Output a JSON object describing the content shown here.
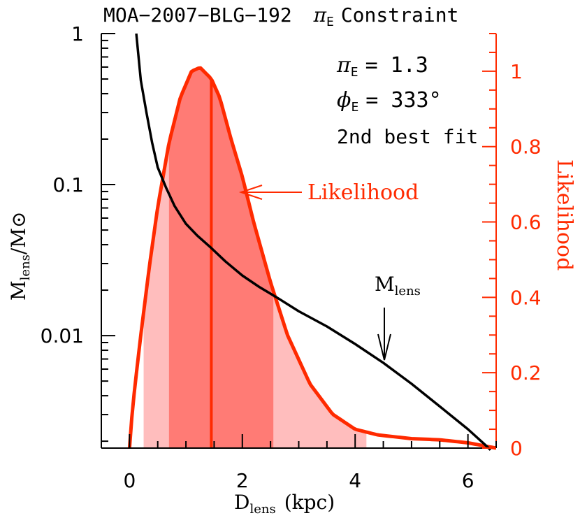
{
  "chart_data": {
    "type": "line",
    "title": {
      "main": "MOA−2007−BLG−192",
      "symbol": "π",
      "sub": "E",
      "tail": "Constraint"
    },
    "xlabel": {
      "main": "D",
      "sub": "lens",
      "tail": "(kpc)"
    },
    "ylabel_left": {
      "main": "M",
      "sub": "lens",
      "tail": "/M⊙"
    },
    "ylabel_right": "Likelihood",
    "xlim": [
      -0.5,
      6.5
    ],
    "ylim_left_log": [
      0.0018,
      1
    ],
    "ylim_right": [
      0,
      1.1
    ],
    "x_ticks": [
      0,
      2,
      4,
      6
    ],
    "x_tick_labels": [
      "0",
      "2",
      "4",
      "6"
    ],
    "y_left_ticks": [
      0.01,
      0.1,
      1
    ],
    "y_left_tick_labels": [
      "0.01",
      "0.1",
      "1"
    ],
    "y_right_ticks": [
      0,
      0.2,
      0.4,
      0.6,
      0.8,
      1
    ],
    "y_right_tick_labels": [
      "0",
      "0.2",
      "0.4",
      "0.6",
      "0.8",
      "1"
    ],
    "annotations": {
      "pi_symbol": "π",
      "pi_sub": "E",
      "pi_value": "= 1.3",
      "phi_symbol": "ϕ",
      "phi_sub": "E",
      "phi_value": "= 333°",
      "fit_label": "2nd best fit",
      "likelihood_arrow_label": "Likelihood",
      "mass_arrow_label_main": "M",
      "mass_arrow_label_sub": "lens"
    },
    "series": [
      {
        "name": "M_lens",
        "axis": "left",
        "x": [
          0.12,
          0.2,
          0.3,
          0.4,
          0.5,
          0.65,
          0.8,
          1.0,
          1.2,
          1.45,
          1.7,
          2.0,
          2.3,
          2.6,
          3.0,
          3.5,
          4.0,
          4.5,
          5.0,
          5.5,
          6.0,
          6.3,
          6.4
        ],
        "y": [
          1.0,
          0.49,
          0.3,
          0.19,
          0.13,
          0.095,
          0.072,
          0.055,
          0.046,
          0.038,
          0.031,
          0.025,
          0.021,
          0.018,
          0.0145,
          0.0115,
          0.0088,
          0.0066,
          0.0048,
          0.0034,
          0.0024,
          0.0019,
          0.00175
        ]
      },
      {
        "name": "Likelihood",
        "axis": "right",
        "x": [
          0.0,
          0.05,
          0.1,
          0.2,
          0.35,
          0.5,
          0.7,
          0.9,
          1.1,
          1.25,
          1.45,
          1.6,
          1.8,
          2.0,
          2.2,
          2.5,
          2.8,
          3.2,
          3.6,
          4.0,
          4.4,
          5.0,
          5.5,
          6.0,
          6.5
        ],
        "y": [
          0.0,
          0.1,
          0.17,
          0.3,
          0.48,
          0.64,
          0.81,
          0.93,
          1.0,
          1.01,
          0.98,
          0.93,
          0.82,
          0.72,
          0.6,
          0.44,
          0.3,
          0.17,
          0.09,
          0.05,
          0.035,
          0.025,
          0.022,
          0.014,
          0.0
        ]
      }
    ],
    "median_x": 1.45,
    "band_outer": [
      0.25,
      4.2
    ],
    "band_inner": [
      0.7,
      2.55
    ],
    "colors": {
      "likelihood": "#ff2a00",
      "mass": "#000000",
      "band_inner": "#ff7b75",
      "band_outer": "#ffbdbd",
      "axis": "#000000"
    }
  }
}
